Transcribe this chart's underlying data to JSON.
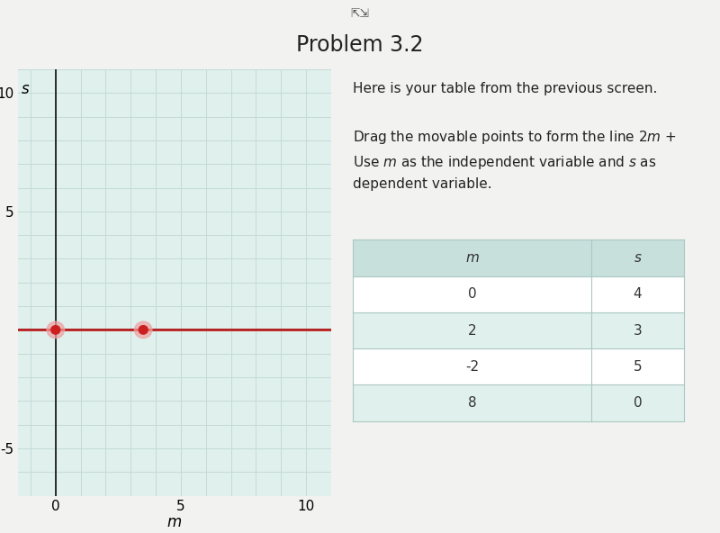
{
  "title": "Problem 3.2",
  "graph": {
    "xlim": [
      -1.5,
      11
    ],
    "ylim": [
      -7,
      11
    ],
    "xlabel": "m",
    "ylabel": "s",
    "xticks": [
      0,
      5,
      10
    ],
    "yticks": [
      -5,
      5,
      10
    ],
    "grid_minor_color": "#c5dbd7",
    "bg_color": "#dff0ed",
    "line_color": "#bb2020",
    "line_y": 0,
    "movable_point1": [
      0,
      0
    ],
    "movable_point2": [
      3.5,
      0
    ],
    "point_color": "#cc2020",
    "point_outline": "#f0a0a0"
  },
  "table": {
    "col_m": [
      "m",
      "0",
      "2",
      "-2",
      "8"
    ],
    "col_s": [
      "s",
      "4",
      "3",
      "5",
      "0"
    ],
    "header_bg": "#c8e0dc",
    "row_bg_even": "#ffffff",
    "row_bg_odd": "#dff0ed",
    "border_color": "#aac8c4",
    "text_color": "#333333"
  },
  "overall_bg": "#f2f2f0",
  "right_bg": "#f2f2f0",
  "expand_icon": "⇱⇲"
}
